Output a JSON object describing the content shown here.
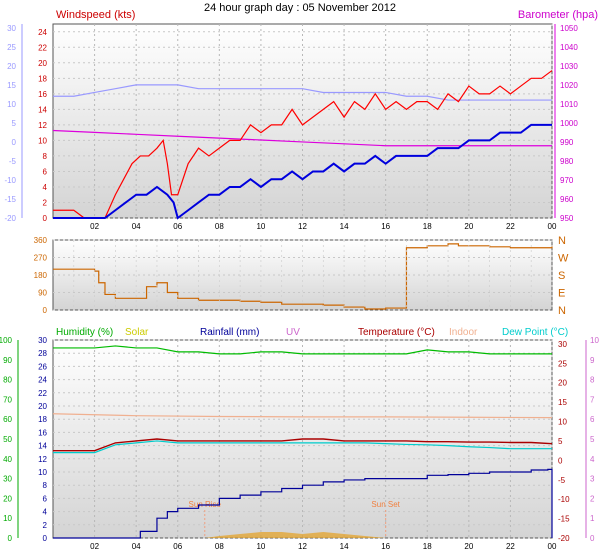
{
  "title": "24 hour graph day : 05 November 2012",
  "colors": {
    "windspeed": "#ff0000",
    "gust": "#ff0000",
    "wind_avg": "#0000dd",
    "barometer": "#dd00dd",
    "temp_grey": "#9999ff",
    "direction": "#cc6600",
    "humidity": "#00bb00",
    "solar": "#e6a020",
    "rainfall": "#000099",
    "uv": "#cc66cc",
    "temperature": "#aa0000",
    "indoor": "#f0b090",
    "dewpoint": "#00cccc",
    "plot_bg_top": "#ffffff",
    "plot_bg_bottom": "#d8d8d8"
  },
  "chart_data": [
    {
      "type": "line",
      "panel": "wind",
      "legend_left": "Windspeed (kts)",
      "legend_right": "Barometer (hpa)",
      "x_ticks": [
        "02",
        "04",
        "06",
        "08",
        "10",
        "12",
        "14",
        "16",
        "18",
        "20",
        "22",
        "00"
      ],
      "y_left_ticks": [
        "0",
        "2",
        "4",
        "6",
        "8",
        "10",
        "12",
        "14",
        "16",
        "18",
        "20",
        "22",
        "24"
      ],
      "y_left_range": [
        0,
        25
      ],
      "y_right_ticks": [
        "950",
        "960",
        "970",
        "980",
        "990",
        "1000",
        "1010",
        "1020",
        "1030",
        "1040",
        "1050"
      ],
      "y_right_range": [
        950,
        1052
      ],
      "y_outer_ticks": [
        "-20",
        "-15",
        "-10",
        "-5",
        "0",
        "5",
        "10",
        "15",
        "20",
        "25",
        "30"
      ],
      "y_outer_range": [
        -20,
        31
      ],
      "series": [
        {
          "name": "Windspeed (kts)",
          "axis": "left",
          "x_hours": [
            0,
            0.5,
            1,
            1.5,
            2,
            2.5,
            3,
            3.4,
            3.8,
            4.2,
            4.6,
            5,
            5.3,
            5.5,
            5.7,
            6,
            6.5,
            7,
            7.5,
            8,
            8.5,
            9,
            9.5,
            10,
            10.5,
            11,
            11.5,
            12,
            12.5,
            13,
            13.5,
            14,
            14.5,
            15,
            15.5,
            16,
            16.5,
            17,
            17.5,
            18,
            18.5,
            19,
            19.5,
            20,
            20.5,
            21,
            21.5,
            22,
            22.5,
            23,
            23.5,
            24
          ],
          "values": [
            1,
            1,
            1,
            0,
            0,
            0,
            3,
            5,
            7,
            8,
            8,
            9,
            10,
            7,
            3,
            3,
            7,
            9,
            8,
            9,
            10,
            10,
            12,
            11,
            12,
            12,
            14,
            12,
            13,
            14,
            15,
            13,
            15,
            14,
            16,
            14,
            15,
            14,
            15,
            15,
            14,
            16,
            15,
            17,
            16,
            16,
            17,
            16,
            17,
            18,
            18,
            19
          ]
        },
        {
          "name": "Wind average",
          "axis": "left",
          "x_hours": [
            0,
            1,
            2,
            2.5,
            3,
            3.5,
            4,
            4.5,
            5,
            5.5,
            5.8,
            6,
            6.5,
            7,
            7.5,
            8,
            8.5,
            9,
            9.5,
            10,
            10.5,
            11,
            11.5,
            12,
            12.5,
            13,
            13.5,
            14,
            14.5,
            15,
            15.5,
            16,
            16.5,
            17,
            17.5,
            18,
            18.5,
            19,
            19.5,
            20,
            20.5,
            21,
            21.5,
            22,
            22.5,
            23,
            23.5,
            24
          ],
          "values": [
            0,
            0,
            0,
            0,
            1,
            2,
            3,
            3,
            4,
            3,
            2,
            0,
            1,
            2,
            3,
            3,
            4,
            4,
            5,
            4,
            5,
            5,
            6,
            5,
            6,
            6,
            7,
            6,
            7,
            7,
            8,
            7,
            8,
            8,
            8,
            8,
            9,
            9,
            9,
            10,
            10,
            10,
            11,
            11,
            11,
            12,
            12,
            12
          ]
        },
        {
          "name": "Barometer (hpa)",
          "axis": "right",
          "x_hours": [
            0,
            2,
            4,
            6,
            8,
            10,
            12,
            14,
            16,
            18,
            20,
            22,
            24
          ],
          "values": [
            996,
            995,
            994,
            993,
            992,
            991,
            990,
            989,
            988,
            988,
            988,
            988,
            988
          ]
        },
        {
          "name": "Temperature",
          "axis": "outer",
          "x_hours": [
            0,
            1,
            2,
            3,
            4,
            5,
            6,
            7,
            8,
            9,
            10,
            11,
            12,
            13,
            14,
            15,
            16,
            17,
            18,
            19,
            20,
            21,
            22,
            23,
            24
          ],
          "values": [
            12,
            12,
            13,
            14,
            15,
            15,
            15,
            14,
            14,
            14,
            14,
            14,
            14,
            13,
            13,
            13,
            13,
            12,
            12,
            11,
            11,
            11,
            11,
            11,
            11
          ]
        }
      ]
    },
    {
      "type": "line",
      "panel": "direction",
      "x_ticks": [],
      "y_left_ticks": [
        "0",
        "90",
        "180",
        "270",
        "360"
      ],
      "y_left_range": [
        0,
        360
      ],
      "y_right_labels": [
        "N",
        "E",
        "S",
        "W",
        "N"
      ],
      "series": [
        {
          "name": "Wind direction",
          "axis": "left",
          "x_hours": [
            0,
            1,
            2,
            2.2,
            2.5,
            3,
            4,
            4.5,
            5,
            5.5,
            6,
            6.5,
            7,
            8,
            9,
            10,
            11,
            12,
            13,
            14,
            15,
            16,
            17,
            18,
            19,
            19.5,
            20,
            21,
            22,
            23,
            24
          ],
          "values": [
            210,
            210,
            200,
            140,
            80,
            60,
            60,
            120,
            140,
            90,
            60,
            60,
            50,
            50,
            45,
            40,
            30,
            30,
            25,
            15,
            5,
            10,
            320,
            330,
            340,
            330,
            330,
            325,
            320,
            320,
            330
          ]
        }
      ]
    },
    {
      "type": "line",
      "panel": "climate",
      "legend": [
        "Humidity (%)",
        "Solar",
        "Rainfall (mm)",
        "UV",
        "Temperature (°C)",
        "Indoor",
        "Dew Point (°C)"
      ],
      "x_ticks": [
        "02",
        "04",
        "06",
        "08",
        "10",
        "12",
        "14",
        "16",
        "18",
        "20",
        "22",
        "00"
      ],
      "y_left_ticks": [
        "0",
        "10",
        "20",
        "30",
        "40",
        "50",
        "60",
        "70",
        "80",
        "90",
        "100"
      ],
      "y_left_range": [
        0,
        100
      ],
      "y_left2_ticks": [
        "0",
        "2",
        "4",
        "6",
        "8",
        "10",
        "12",
        "14",
        "16",
        "18",
        "20",
        "22",
        "24",
        "26",
        "28",
        "30"
      ],
      "y_left2_range": [
        0,
        30
      ],
      "y_right_ticks": [
        "-20",
        "-15",
        "-10",
        "-5",
        "0",
        "5",
        "10",
        "15",
        "20",
        "25",
        "30"
      ],
      "y_right_range": [
        -20,
        31
      ],
      "y_right2_ticks": [
        "0",
        "1",
        "2",
        "3",
        "4",
        "5",
        "6",
        "7",
        "8",
        "9",
        "10"
      ],
      "y_right2_range": [
        0,
        10
      ],
      "annotations": [
        {
          "text": "Sun Rise",
          "x_hour": 7.3
        },
        {
          "text": "Sun Set",
          "x_hour": 16.0
        }
      ],
      "series": [
        {
          "name": "Humidity (%)",
          "axis": "left",
          "x_hours": [
            0,
            1,
            2,
            3,
            4,
            5,
            6,
            7,
            8,
            9,
            10,
            11,
            12,
            13,
            14,
            15,
            16,
            17,
            18,
            19,
            20,
            21,
            22,
            23,
            24
          ],
          "values": [
            96,
            96,
            96,
            97,
            96,
            96,
            94,
            94,
            93,
            93,
            94,
            94,
            93,
            93,
            93,
            93,
            93,
            93,
            95,
            94,
            94,
            93,
            93,
            93,
            93
          ]
        },
        {
          "name": "Temperature (°C)",
          "axis": "right",
          "x_hours": [
            0,
            1,
            2,
            3,
            4,
            5,
            6,
            7,
            8,
            9,
            10,
            11,
            12,
            13,
            14,
            15,
            16,
            17,
            18,
            19,
            20,
            21,
            22,
            23,
            24
          ],
          "values": [
            2.5,
            2.5,
            2.5,
            4.5,
            5,
            5.5,
            5,
            5,
            5,
            5,
            5,
            5,
            5.5,
            5.5,
            5,
            5,
            5,
            5,
            4.8,
            4.8,
            4.7,
            4.7,
            4.6,
            4.6,
            4.3
          ]
        },
        {
          "name": "Dew Point (°C)",
          "axis": "right",
          "x_hours": [
            0,
            1,
            2,
            3,
            4,
            5,
            6,
            7,
            8,
            9,
            10,
            11,
            12,
            13,
            14,
            15,
            16,
            17,
            18,
            19,
            20,
            21,
            22,
            23,
            24
          ],
          "values": [
            2,
            2,
            2,
            4,
            4.5,
            5,
            4.5,
            4.5,
            4.5,
            4.5,
            4.5,
            4.5,
            4.5,
            4.5,
            4.5,
            4.5,
            4.3,
            4.1,
            4,
            3.8,
            3.5,
            3.3,
            3,
            3,
            3
          ]
        },
        {
          "name": "Indoor",
          "axis": "right",
          "x_hours": [
            0,
            4,
            8,
            12,
            16,
            20,
            24
          ],
          "values": [
            12,
            11.5,
            11.3,
            11.2,
            11.2,
            11.1,
            11
          ]
        },
        {
          "name": "Rainfall (mm)",
          "axis": "left2",
          "x_hours": [
            0,
            3,
            3.8,
            4.2,
            5,
            5.5,
            6,
            7,
            8,
            9,
            10,
            11,
            12,
            13,
            14,
            15,
            16,
            17,
            18,
            19,
            20,
            21,
            22,
            23,
            23.8,
            24
          ],
          "values": [
            0,
            0,
            0,
            1,
            3,
            4,
            4.5,
            5,
            6,
            6.5,
            7,
            7.5,
            8,
            8.5,
            8.8,
            9,
            9,
            9,
            9.5,
            9.6,
            9.8,
            10,
            10,
            10.3,
            10.4,
            0
          ]
        },
        {
          "name": "Solar",
          "axis": "left",
          "x_hours": [
            7.3,
            8,
            9,
            10,
            11,
            12,
            13,
            14,
            15,
            16
          ],
          "values": [
            0,
            1,
            2,
            3,
            3,
            2,
            3,
            2,
            1,
            0
          ]
        }
      ]
    }
  ]
}
